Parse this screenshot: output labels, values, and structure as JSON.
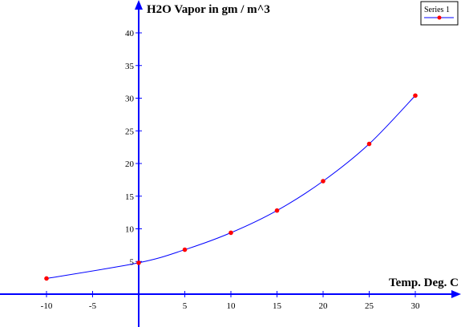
{
  "chart_data": {
    "type": "line",
    "ylabel": "H2O Vapor in gm / m^3",
    "xlabel": "Temp. Deg. C",
    "x_ticks": [
      -10,
      -5,
      5,
      10,
      15,
      20,
      25,
      30
    ],
    "y_ticks": [
      5,
      10,
      15,
      20,
      25,
      30,
      35,
      40
    ],
    "xlim": [
      -15,
      35
    ],
    "ylim": [
      -5,
      45
    ],
    "grid": false,
    "legend_position": "top-right",
    "series": [
      {
        "name": "Series 1",
        "color": "#0000ff",
        "marker_color": "#ff0000",
        "x": [
          -10,
          0,
          5,
          10,
          15,
          20,
          25,
          30
        ],
        "y": [
          2.4,
          4.8,
          6.8,
          9.4,
          12.8,
          17.3,
          23.0,
          30.4
        ]
      }
    ]
  }
}
